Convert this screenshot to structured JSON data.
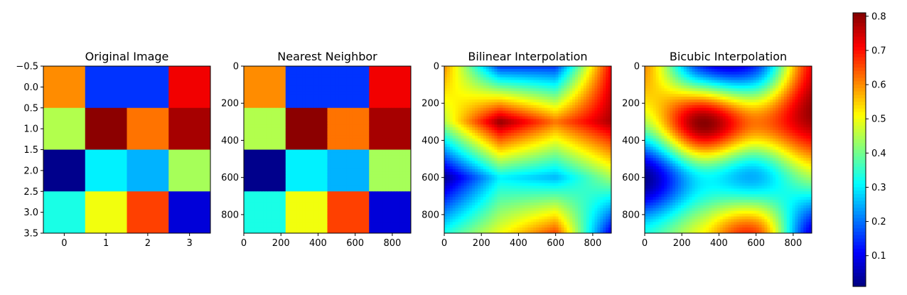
{
  "chart_data": [
    {
      "type": "heatmap",
      "title": "Original Image",
      "colormap": "jet",
      "x_ticks": [
        "0",
        "1",
        "2",
        "3"
      ],
      "y_ticks": [
        "−0.5",
        "0.0",
        "0.5",
        "1.0",
        "1.5",
        "2.0",
        "2.5",
        "3.0",
        "3.5"
      ],
      "xlim": [
        -0.5,
        3.5
      ],
      "ylim": [
        3.5,
        -0.5
      ],
      "values": [
        [
          0.6,
          0.15,
          0.15,
          0.72
        ],
        [
          0.45,
          0.8,
          0.62,
          0.78
        ],
        [
          0.02,
          0.3,
          0.25,
          0.44
        ],
        [
          0.33,
          0.5,
          0.66,
          0.08
        ]
      ]
    },
    {
      "type": "heatmap",
      "title": "Nearest Neighbor",
      "colormap": "jet",
      "x_ticks": [
        "0",
        "200",
        "400",
        "600",
        "800"
      ],
      "y_ticks": [
        "0",
        "200",
        "400",
        "600",
        "800"
      ],
      "xlim": [
        0,
        900
      ],
      "ylim": [
        900,
        0
      ]
    },
    {
      "type": "heatmap",
      "title": "Bilinear Interpolation",
      "colormap": "jet",
      "x_ticks": [
        "0",
        "200",
        "400",
        "600",
        "800"
      ],
      "y_ticks": [
        "0",
        "200",
        "400",
        "600",
        "800"
      ],
      "xlim": [
        0,
        900
      ],
      "ylim": [
        900,
        0
      ]
    },
    {
      "type": "heatmap",
      "title": "Bicubic Interpolation",
      "colormap": "jet",
      "x_ticks": [
        "0",
        "200",
        "400",
        "600",
        "800"
      ],
      "y_ticks": [
        "0",
        "200",
        "400",
        "600",
        "800"
      ],
      "xlim": [
        0,
        900
      ],
      "ylim": [
        900,
        0
      ]
    }
  ],
  "colorbar": {
    "colormap": "jet",
    "range": [
      0.01,
      0.81
    ],
    "ticks": [
      "0.1",
      "0.2",
      "0.3",
      "0.4",
      "0.5",
      "0.6",
      "0.7",
      "0.8"
    ]
  }
}
